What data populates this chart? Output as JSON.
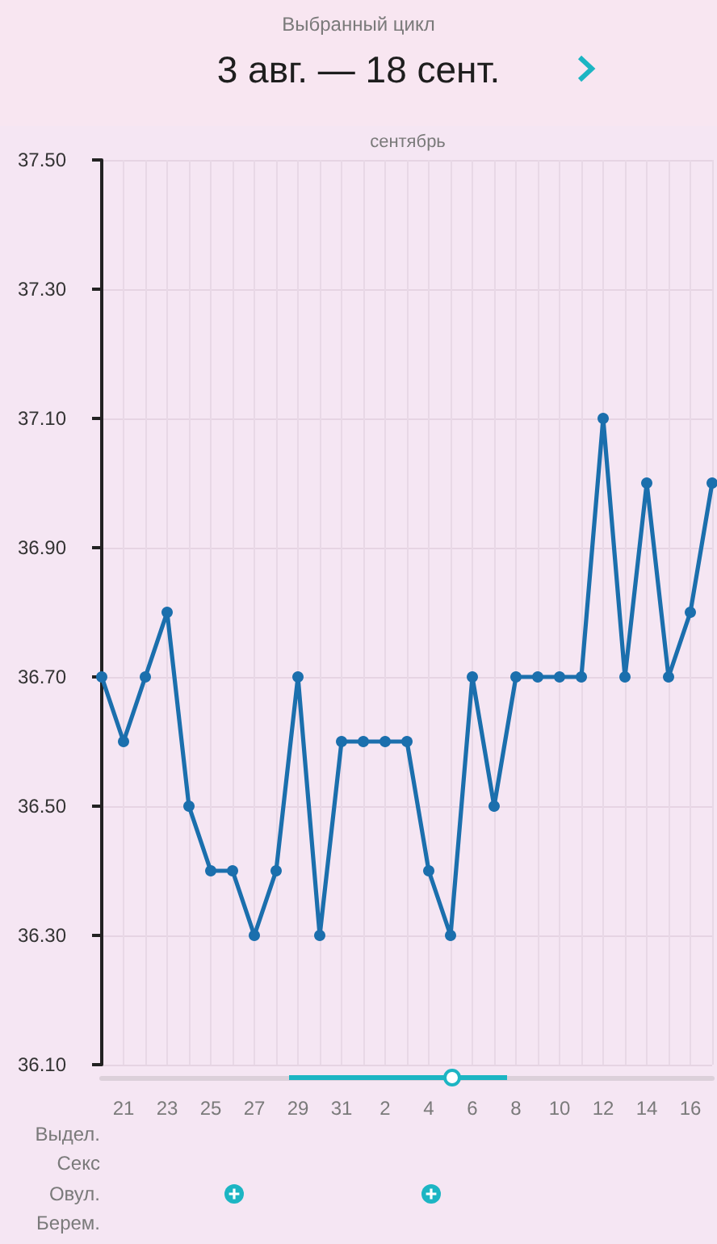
{
  "chart_data": {
    "type": "line",
    "title": "Выбранный цикл",
    "subtitle": "3 авг. — 18 сент.",
    "categories": [
      null,
      "21",
      null,
      "23",
      null,
      "25",
      null,
      "27",
      null,
      "29",
      null,
      "31",
      null,
      "2",
      null,
      "4",
      null,
      "6",
      null,
      "8",
      null,
      "10",
      null,
      "12",
      null,
      "14",
      null,
      "16",
      null
    ],
    "values": [
      36.7,
      36.6,
      36.7,
      36.8,
      36.5,
      36.4,
      36.4,
      36.3,
      36.4,
      36.7,
      36.3,
      36.6,
      36.6,
      36.6,
      36.6,
      36.4,
      36.3,
      36.7,
      36.5,
      36.7,
      36.7,
      36.7,
      36.7,
      37.1,
      36.7,
      37.0,
      36.7,
      36.8,
      37.0
    ],
    "color": "#1b6fad",
    "ylim": [
      36.1,
      37.5
    ],
    "yticks": [
      {
        "value": 36.1,
        "label": "36.10"
      },
      {
        "value": 36.3,
        "label": "36.30"
      },
      {
        "value": 36.5,
        "label": "36.50"
      },
      {
        "value": 36.7,
        "label": "36.70"
      },
      {
        "value": 36.9,
        "label": "36.90"
      },
      {
        "value": 37.1,
        "label": "37.10"
      },
      {
        "value": 37.3,
        "label": "37.30"
      },
      {
        "value": 37.5,
        "label": "37.50"
      }
    ],
    "grid": true,
    "marker": "circle",
    "line_style": "solid",
    "annotations": [
      "сентябрь",
      "Выдел.",
      "Секс",
      "Овул.",
      "Берем."
    ]
  }
}
